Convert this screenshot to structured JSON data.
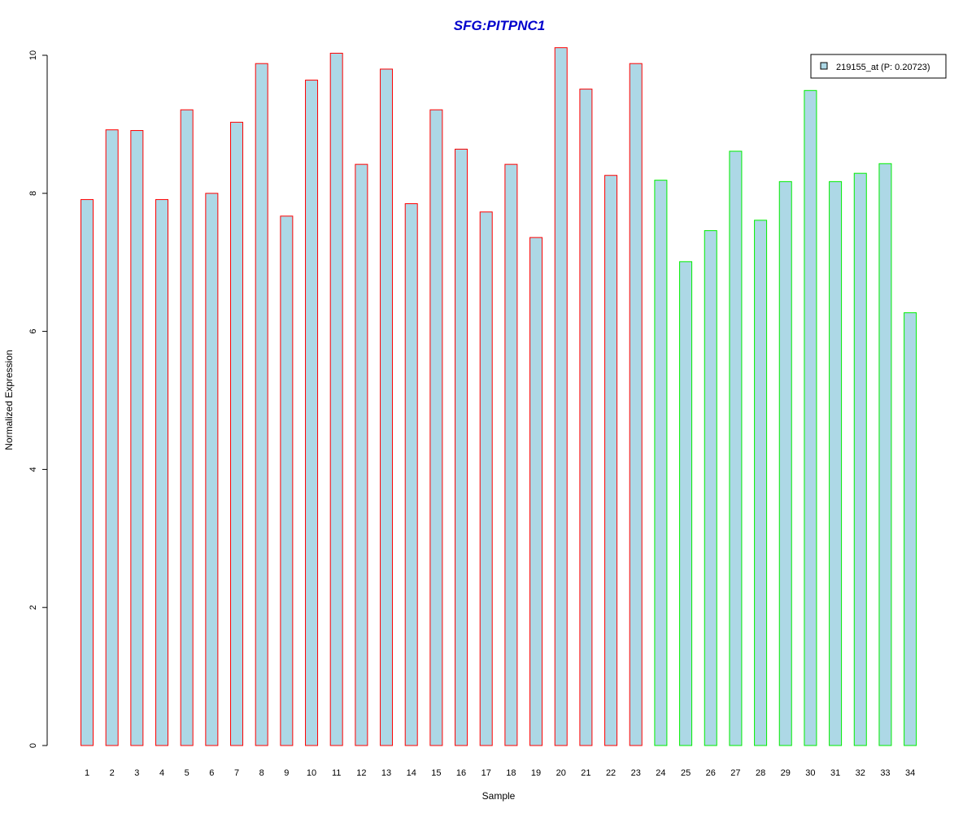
{
  "chart_data": {
    "type": "bar",
    "title": "SFG:PITPNC1",
    "xlabel": "Sample",
    "ylabel": "Normalized Expression",
    "ylim": [
      0,
      10
    ],
    "yticks": [
      "0",
      "2",
      "4",
      "6",
      "8",
      "10"
    ],
    "categories": [
      "1",
      "2",
      "3",
      "4",
      "5",
      "6",
      "7",
      "8",
      "9",
      "10",
      "11",
      "12",
      "13",
      "14",
      "15",
      "16",
      "17",
      "18",
      "19",
      "20",
      "21",
      "22",
      "23",
      "24",
      "25",
      "26",
      "27",
      "28",
      "29",
      "30",
      "31",
      "32",
      "33",
      "34"
    ],
    "series": [
      {
        "name": "219155_at (P: 0.20723)",
        "values": [
          7.91,
          8.92,
          8.91,
          7.91,
          9.21,
          8.0,
          9.03,
          9.88,
          7.67,
          9.64,
          10.03,
          8.42,
          9.8,
          7.85,
          9.21,
          8.64,
          7.73,
          8.42,
          7.36,
          10.11,
          9.51,
          8.26,
          9.88,
          8.19,
          7.01,
          7.46,
          8.61,
          7.61,
          8.17,
          9.49,
          8.17,
          8.29,
          8.43,
          6.27
        ],
        "groups": [
          "red",
          "red",
          "red",
          "red",
          "red",
          "red",
          "red",
          "red",
          "red",
          "red",
          "red",
          "red",
          "red",
          "red",
          "red",
          "red",
          "red",
          "red",
          "red",
          "red",
          "red",
          "red",
          "red",
          "green",
          "green",
          "green",
          "green",
          "green",
          "green",
          "green",
          "green",
          "green",
          "green",
          "green"
        ]
      }
    ],
    "colors": {
      "bar_fill": "#add8e6",
      "group_red_border": "#ff0000",
      "group_green_border": "#00ee00",
      "title": "#0000cc"
    },
    "legend": {
      "position": "top-right",
      "label": "219155_at (P: 0.20723)"
    },
    "grid": false
  }
}
